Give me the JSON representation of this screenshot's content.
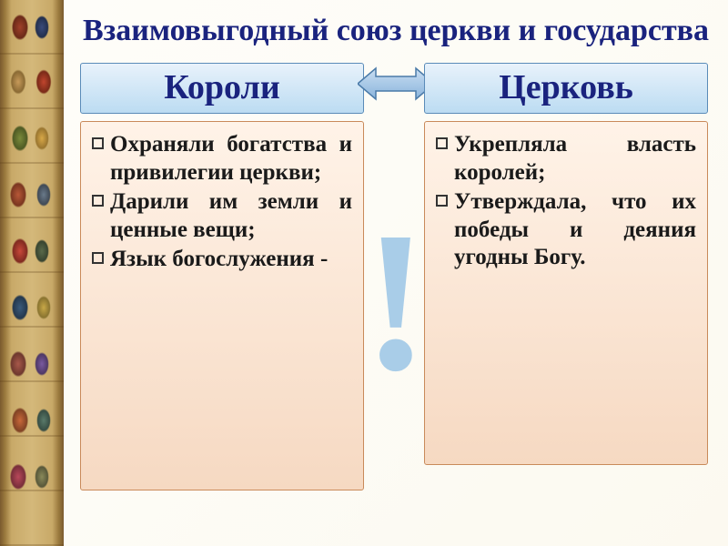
{
  "title": "Взаимовыгодный союз церкви и государства",
  "title_color": "#1a237e",
  "title_fontsize": 34,
  "left": {
    "header": "Короли",
    "items": [
      "Охраняли богатства и привилегии церкви;",
      "Дарили им земли и ценные вещи;",
      "Язык богослужения -"
    ]
  },
  "right": {
    "header": "Церковь",
    "items": [
      "Укрепляла власть королей;",
      "Утверждала, что их победы и деяния угодны Богу."
    ]
  },
  "style": {
    "header_fontsize": 38,
    "header_color": "#1a237e",
    "header_bg_top": "#e8f2fb",
    "header_bg_bottom": "#bcdcf2",
    "header_border": "#5a8bb8",
    "body_fontsize": 25,
    "body_color": "#1a1a1a",
    "body_bg_top": "#fff3e8",
    "body_bg_bottom": "#f6d9c2",
    "body_border": "#c98a5a",
    "bullet_border": "#333333",
    "left_body_height": 406,
    "right_body_height": 378
  },
  "arrow": {
    "fill_light": "#c9def2",
    "fill_dark": "#8ab4dc",
    "stroke": "#4a7aa8"
  },
  "exclamation": {
    "text": "!",
    "color": "#a9cde8",
    "fontsize": 220
  },
  "background_color": "#fefdf8"
}
